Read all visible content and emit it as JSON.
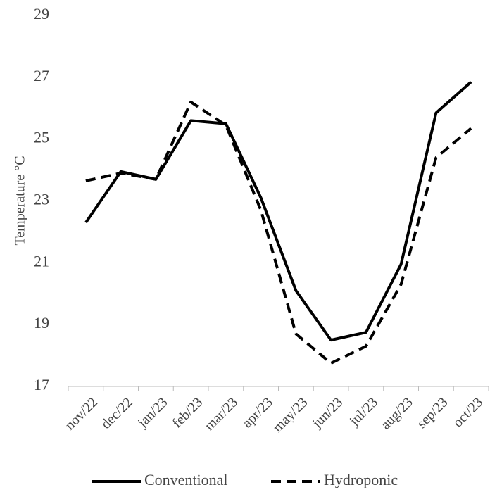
{
  "chart_data": {
    "type": "line",
    "y_label": "Temperature °C",
    "categories": [
      "nov/22",
      "dec/22",
      "jan/23",
      "feb/23",
      "mar/23",
      "apr/23",
      "may/23",
      "jun/23",
      "jul/23",
      "aug/23",
      "sep/23",
      "oct/23"
    ],
    "series": [
      {
        "name": "Conventional",
        "color": "#000000",
        "dash": false,
        "values": [
          22.3,
          23.95,
          23.7,
          25.6,
          25.5,
          23.1,
          20.1,
          18.5,
          18.75,
          20.95,
          25.85,
          26.85
        ]
      },
      {
        "name": "Hydroponic",
        "color": "#000000",
        "dash": true,
        "values": [
          23.65,
          23.9,
          23.7,
          26.2,
          25.45,
          22.7,
          18.7,
          17.75,
          18.3,
          20.3,
          24.4,
          25.35
        ]
      }
    ],
    "ylim": [
      17,
      29
    ],
    "yticks": [
      17,
      19,
      21,
      23,
      25,
      27,
      29
    ],
    "grid": false,
    "legend": "bottom"
  }
}
